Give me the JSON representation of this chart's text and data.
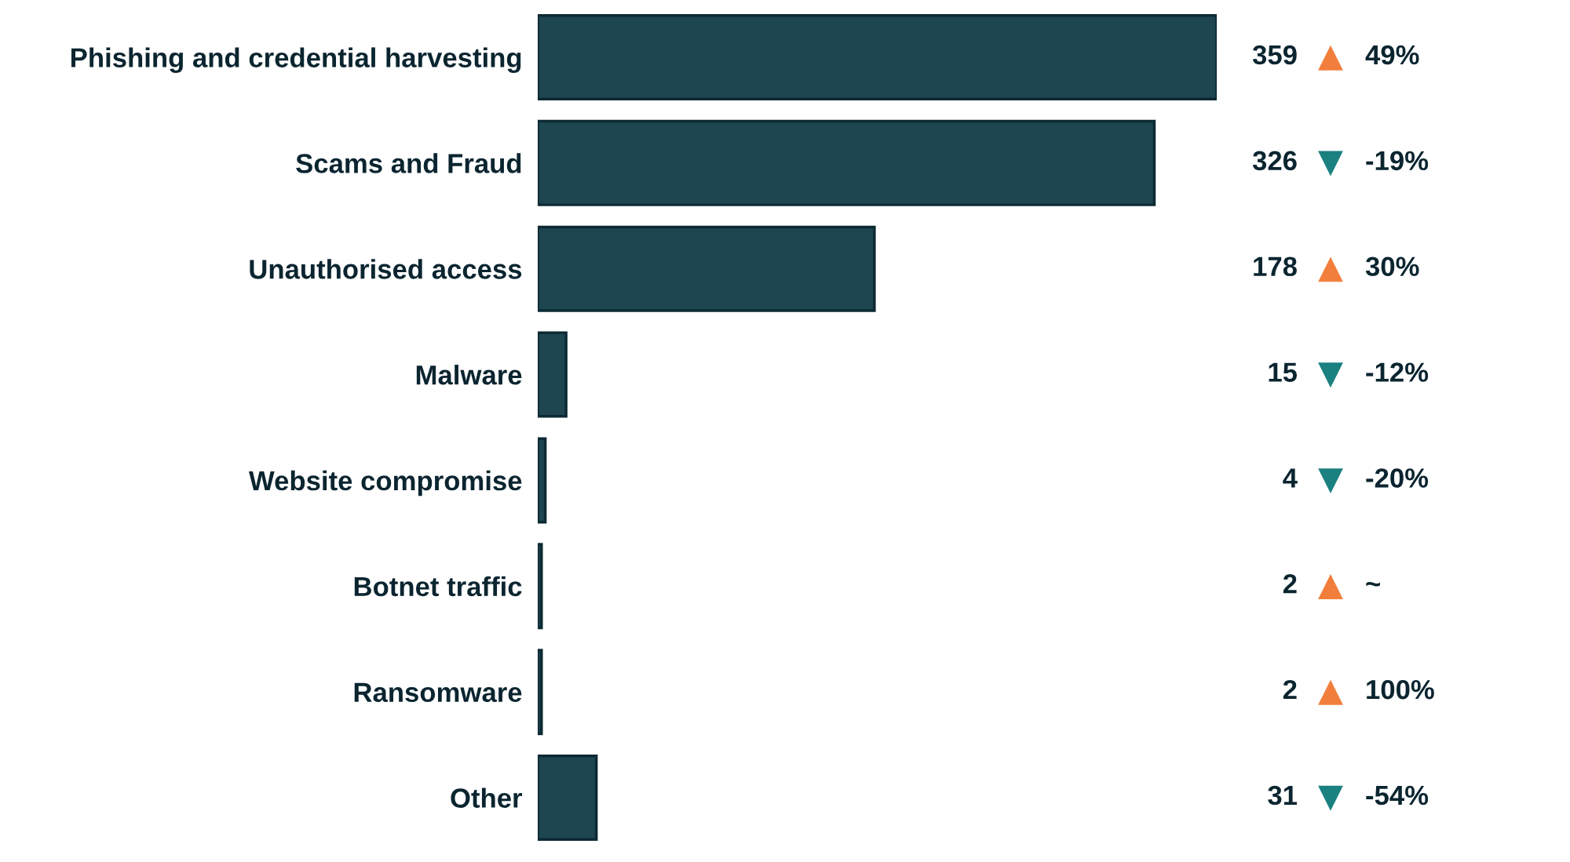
{
  "chart_data": {
    "type": "bar",
    "orientation": "horizontal",
    "categories": [
      "Phishing and credential harvesting",
      "Scams and Fraud",
      "Unauthorised access",
      "Malware",
      "Website compromise",
      "Botnet traffic",
      "Ransomware",
      "Other"
    ],
    "values": [
      359,
      326,
      178,
      15,
      4,
      2,
      2,
      31
    ],
    "color": "#1e4650",
    "data_labels": true,
    "annotations": [
      "▲ 49%",
      "▼ -19%",
      "▲ 30%",
      "▼ -12%",
      "▼ -20%",
      "▲ ~",
      "▲ 100%",
      "▼ -54%"
    ]
  }
}
